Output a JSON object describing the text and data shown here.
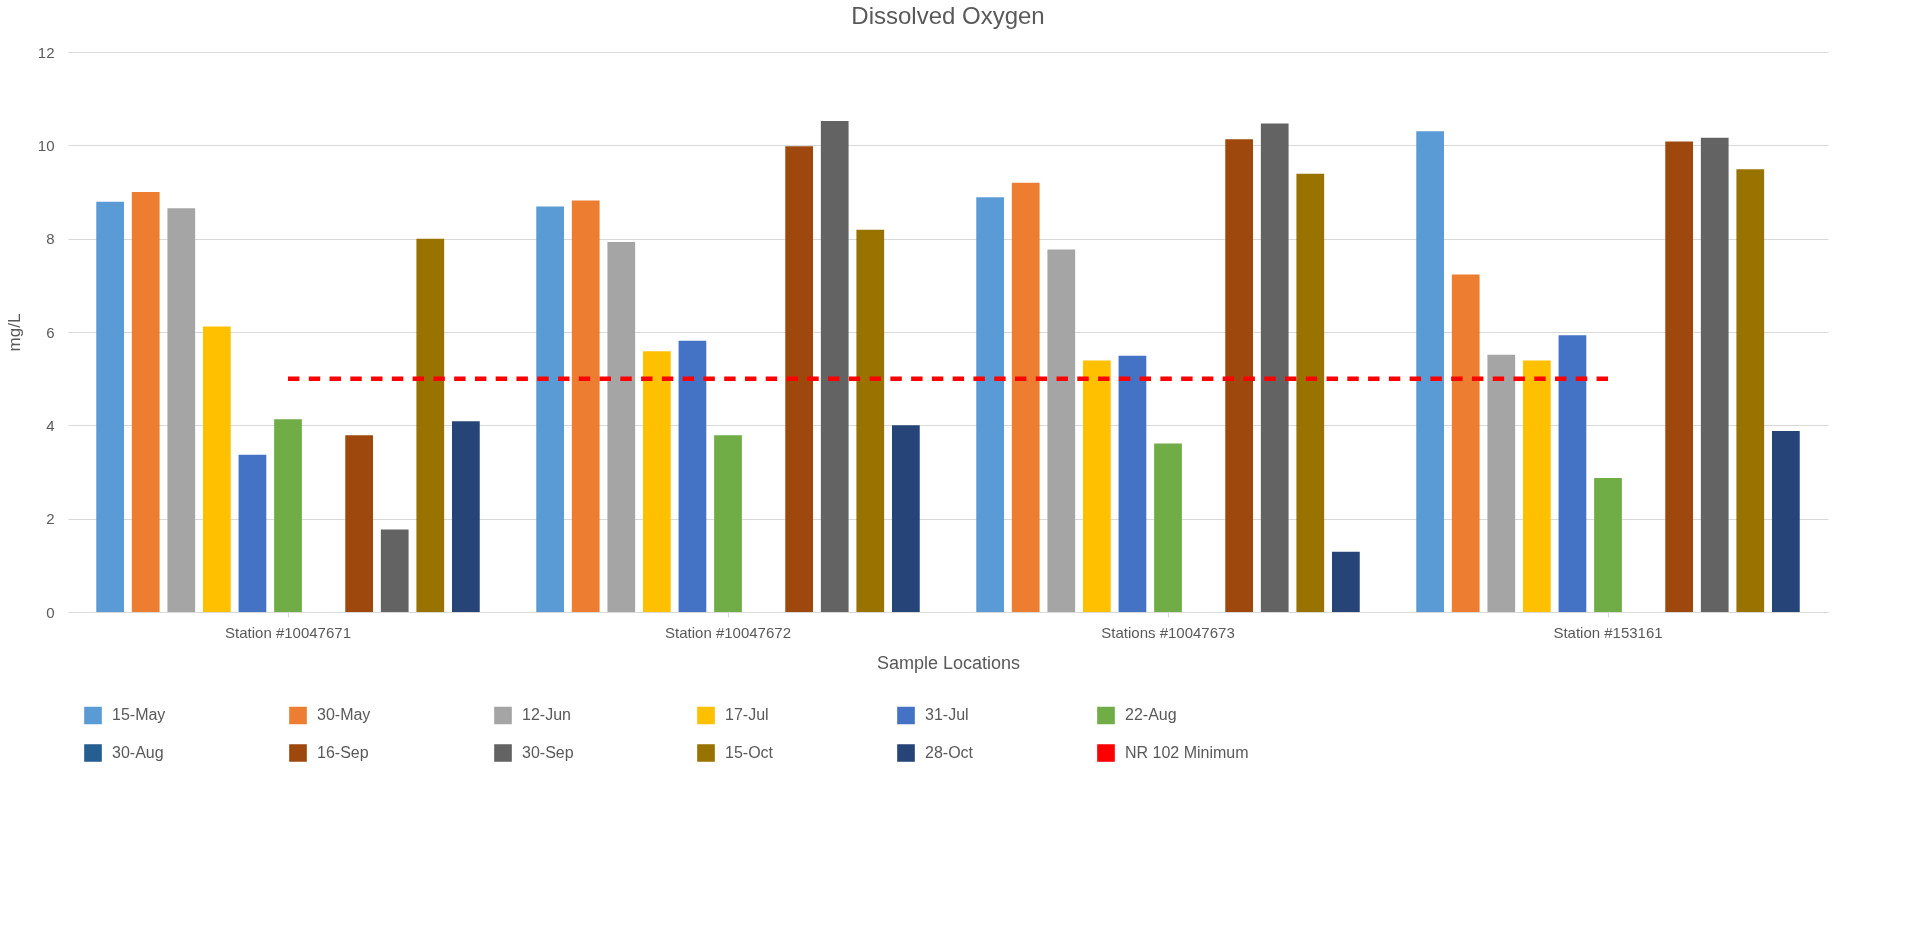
{
  "chart_data": {
    "type": "bar",
    "title": "Dissolved Oxygen",
    "xlabel": "Sample Locations",
    "ylabel": "mg/L",
    "categories": [
      "Station #10047671",
      "Station #10047672",
      "Stations #10047673",
      "Station #153161"
    ],
    "series": [
      {
        "name": "15-May",
        "color": "#5b9bd5",
        "values": [
          8.79,
          8.69,
          8.89,
          10.3
        ]
      },
      {
        "name": "30-May",
        "color": "#ed7d31",
        "values": [
          9.0,
          8.82,
          9.2,
          7.23
        ]
      },
      {
        "name": "12-Jun",
        "color": "#a5a5a5",
        "values": [
          8.65,
          7.93,
          7.77,
          5.51
        ]
      },
      {
        "name": "17-Jul",
        "color": "#ffc000",
        "values": [
          6.12,
          5.59,
          5.39,
          5.39
        ]
      },
      {
        "name": "31-Jul",
        "color": "#4472c4",
        "values": [
          3.37,
          5.81,
          5.49,
          5.93
        ]
      },
      {
        "name": "22-Aug",
        "color": "#70ad47",
        "values": [
          4.13,
          3.79,
          3.61,
          2.87
        ]
      },
      {
        "name": "30-Aug",
        "color": "#255e91",
        "values": [
          null,
          null,
          null,
          null
        ]
      },
      {
        "name": "16-Sep",
        "color": "#9e480e",
        "values": [
          3.79,
          9.98,
          10.13,
          10.08
        ]
      },
      {
        "name": "30-Sep",
        "color": "#636363",
        "values": [
          1.77,
          10.52,
          10.47,
          10.16
        ]
      },
      {
        "name": "15-Oct",
        "color": "#997300",
        "values": [
          8.0,
          8.19,
          9.39,
          9.49
        ]
      },
      {
        "name": "28-Oct",
        "color": "#264478",
        "values": [
          4.09,
          4.0,
          1.29,
          3.88
        ]
      },
      {
        "name": "NR 102 Minimum",
        "type": "line",
        "color": "#ff0000",
        "values": [
          5,
          5,
          5,
          5
        ]
      }
    ],
    "ylim": [
      0,
      12
    ],
    "yticks": [
      0,
      2,
      4,
      6,
      8,
      10,
      12
    ],
    "grid": "y",
    "legend": "bottom",
    "line_style": "dashed",
    "marker": "none"
  }
}
